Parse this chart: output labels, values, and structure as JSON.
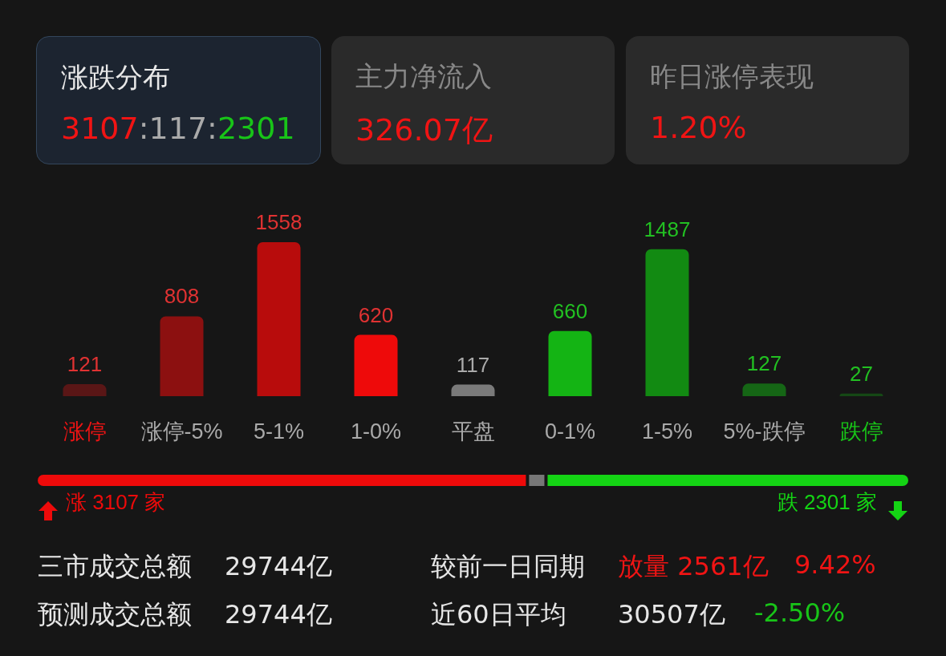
{
  "chart_data": [
    {
      "type": "other",
      "annotations": [
        "涨跌分布",
        "3107:117:2301",
        "主力净流入",
        "326.07亿",
        "昨日涨停表现",
        "1.20%"
      ]
    },
    {
      "type": "bar",
      "categories": [
        "涨停",
        "涨停-5%",
        "5-1%",
        "1-0%",
        "平盘",
        "0-1%",
        "1-5%",
        "5%-跌停",
        "跌停"
      ],
      "values": [
        121,
        808,
        1558,
        620,
        117,
        660,
        1487,
        127,
        27
      ],
      "colors": [
        "#5a1616",
        "#8c1010",
        "#b80c0c",
        "#ee0a0a",
        "#7a7a7a",
        "#14b414",
        "#128a12",
        "#156615",
        "#154815"
      ],
      "data_labels": true
    },
    {
      "type": "bar",
      "orientation": "horizontal",
      "stacked": true,
      "categories": [
        null
      ],
      "xlim": [
        0,
        5525
      ],
      "tick_labels": false,
      "series": [
        {
          "color": "#ee0a0a",
          "values": [
            3107
          ],
          "value_labels": [
            "涨 3107 家"
          ]
        },
        {
          "color": "#777777",
          "values": [
            117
          ],
          "value_labels": [
            null
          ]
        },
        {
          "color": "#14d414",
          "values": [
            2301
          ],
          "value_labels": [
            "跌 2301 家"
          ]
        }
      ]
    },
    {
      "type": "other",
      "annotations": [
        "三市成交总额",
        "29744亿",
        "较前一日同期",
        "放量 2561亿",
        "9.42%",
        "预测成交总额",
        "29744亿",
        "近60日平均",
        "30507亿",
        "-2.50%"
      ]
    }
  ]
}
